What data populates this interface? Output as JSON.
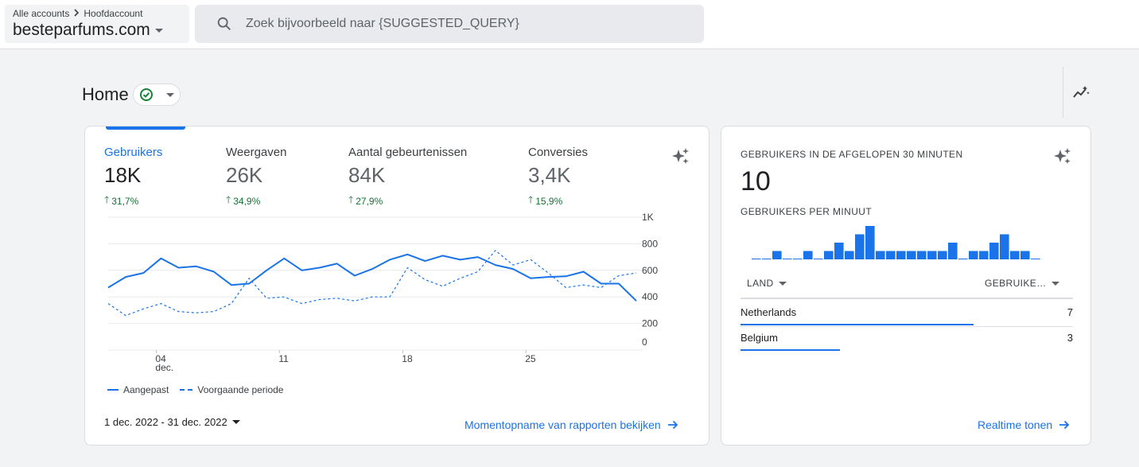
{
  "header": {
    "breadcrumb": [
      "Alle accounts",
      "Hoofdaccount"
    ],
    "property": "besteparfums.com",
    "search_placeholder": "Zoek bijvoorbeeld naar {SUGGESTED_QUERY}"
  },
  "page": {
    "title": "Home"
  },
  "overview": {
    "metrics": [
      {
        "label": "Gebruikers",
        "value": "18K",
        "change": "31,7%"
      },
      {
        "label": "Weergaven",
        "value": "26K",
        "change": "34,9%"
      },
      {
        "label": "Aantal gebeurtenissen",
        "value": "84K",
        "change": "27,9%"
      },
      {
        "label": "Conversies",
        "value": "3,4K",
        "change": "15,9%"
      }
    ],
    "date_range": "1 dec. 2022 - 31 dec. 2022",
    "link": "Momentopname van rapporten bekijken"
  },
  "chart_data": {
    "type": "line",
    "x_tick_labels": [
      "04",
      "dec.",
      "11",
      "18",
      "25"
    ],
    "y_tick_labels": [
      "1K",
      "800",
      "600",
      "400",
      "200",
      "0"
    ],
    "ylim": [
      0,
      1000
    ],
    "x_days": [
      1,
      2,
      3,
      4,
      5,
      6,
      7,
      8,
      9,
      10,
      11,
      12,
      13,
      14,
      15,
      16,
      17,
      18,
      19,
      20,
      21,
      22,
      23,
      24,
      25,
      26,
      27,
      28,
      29,
      30,
      31
    ],
    "series": [
      {
        "name": "Aangepast",
        "style": "solid",
        "color": "#1a73e8",
        "values": [
          470,
          550,
          580,
          690,
          620,
          630,
          590,
          490,
          500,
          600,
          690,
          600,
          620,
          650,
          560,
          610,
          680,
          720,
          670,
          710,
          680,
          700,
          640,
          610,
          540,
          550,
          555,
          590,
          500,
          500,
          370
        ]
      },
      {
        "name": "Voorgaande periode",
        "style": "dashed",
        "color": "#1a73e8",
        "values": [
          350,
          260,
          310,
          350,
          290,
          280,
          290,
          350,
          540,
          390,
          400,
          350,
          380,
          390,
          370,
          400,
          400,
          620,
          530,
          480,
          540,
          590,
          750,
          640,
          680,
          580,
          470,
          490,
          470,
          560,
          580
        ]
      }
    ],
    "grid": true
  },
  "realtime": {
    "title": "GEBRUIKERS IN DE AFGELOPEN 30 MINUTEN",
    "value": "10",
    "subtitle": "GEBRUIKERS PER MINUUT",
    "per_minute": [
      0,
      0,
      1,
      0,
      0,
      1,
      0,
      1,
      2,
      1,
      3,
      4,
      1,
      1,
      1,
      1,
      1,
      1,
      1,
      2,
      0,
      1,
      1,
      2,
      3,
      1,
      1,
      0
    ],
    "col_country": "LAND",
    "col_users": "GEBRUIKE…",
    "rows": [
      {
        "country": "Netherlands",
        "users": "7",
        "share": 0.7
      },
      {
        "country": "Belgium",
        "users": "3",
        "share": 0.3
      }
    ],
    "link": "Realtime tonen"
  }
}
